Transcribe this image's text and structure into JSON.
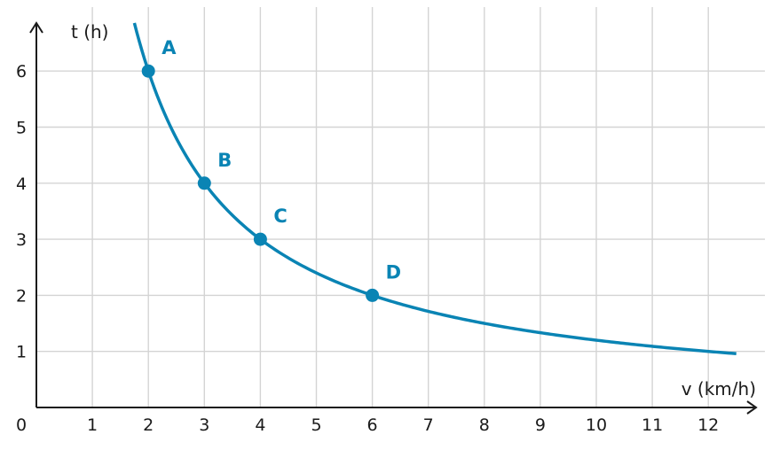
{
  "chart_data": {
    "type": "line",
    "xlabel": "v (km/h)",
    "ylabel": "t (h)",
    "origin_label": "0",
    "x_ticks": [
      "1",
      "2",
      "3",
      "4",
      "5",
      "6",
      "7",
      "8",
      "9",
      "10",
      "11",
      "12"
    ],
    "y_ticks": [
      "1",
      "2",
      "3",
      "4",
      "5",
      "6"
    ],
    "xlim": [
      0,
      12.9
    ],
    "ylim": [
      0,
      6.9
    ],
    "grid": true,
    "curve": {
      "function": "t = 12 / v",
      "k": 12,
      "x_from": 1.75,
      "x_to": 12.5
    },
    "points": [
      {
        "label": "A",
        "x": 2,
        "y": 6
      },
      {
        "label": "B",
        "x": 3,
        "y": 4
      },
      {
        "label": "C",
        "x": 4,
        "y": 3
      },
      {
        "label": "D",
        "x": 6,
        "y": 2
      }
    ],
    "colors": {
      "curve": "#0a84b4",
      "axis": "#1a1a1a",
      "grid": "#d4d4d4"
    }
  }
}
